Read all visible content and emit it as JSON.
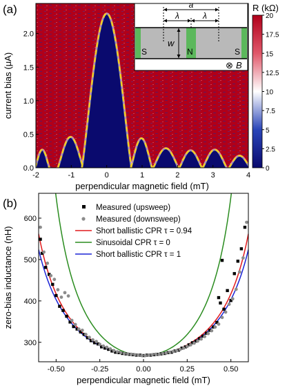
{
  "chart_data": [
    {
      "panel_label": "(a)",
      "type": "heatmap",
      "xlabel": "perpendicular magnetic field (mT)",
      "ylabel": "current bias (μA)",
      "xlim": [
        -2,
        4
      ],
      "ylim": [
        0,
        2.45
      ],
      "xticks": [
        "-2",
        "-1",
        "0",
        "1",
        "2",
        "3",
        "4"
      ],
      "yticks": [
        "0.0",
        "0.5",
        "1.0",
        "1.5",
        "2.0"
      ],
      "colorbar": {
        "label": "R (kΩ)",
        "range": [
          0,
          20
        ],
        "ticks": [
          "0",
          "2.5",
          "5",
          "7.5",
          "10",
          "12.5",
          "15",
          "17.5",
          "20"
        ],
        "low_color": "#0a0a6e",
        "mid_color": "#ffffff",
        "high_color": "#b0001a"
      },
      "critical_current_lobes": [
        {
          "center": -1.82,
          "half_width": 0.2,
          "peak": 0.27
        },
        {
          "center": -1.02,
          "half_width": 0.36,
          "peak": 0.46
        },
        {
          "center": 0.0,
          "half_width": 0.7,
          "peak": 2.3
        },
        {
          "center": 0.98,
          "half_width": 0.3,
          "peak": 0.44
        },
        {
          "center": 1.67,
          "half_width": 0.36,
          "peak": 0.29
        },
        {
          "center": 2.37,
          "half_width": 0.32,
          "peak": 0.26
        },
        {
          "center": 3.05,
          "half_width": 0.34,
          "peak": 0.27
        },
        {
          "center": 3.75,
          "half_width": 0.3,
          "peak": 0.18
        }
      ],
      "fit_curve_color": "#f2d21a",
      "inset": {
        "labels": {
          "a": "a",
          "lambda": "λ",
          "w": "w",
          "S_left": "S",
          "N": "N",
          "S_right": "S",
          "B": "B"
        },
        "field_symbol": "⊗",
        "colors": {
          "superconductor": "#5cb85c",
          "junction": "#b9b9b9"
        }
      }
    },
    {
      "panel_label": "(b)",
      "type": "scatter",
      "xlabel": "perpendicular magnetic field (mT)",
      "ylabel": "zero-bias inductance (nH)",
      "xlim": [
        -0.6,
        0.6
      ],
      "ylim": [
        253,
        660
      ],
      "xticks": [
        "-0.50",
        "-0.25",
        "0.00",
        "0.25",
        "0.50"
      ],
      "yticks": [
        "300",
        "400",
        "500",
        "600"
      ],
      "legend_position": "top-center",
      "series": [
        {
          "name": "Measured (upsweep)",
          "kind": "points",
          "marker": "square",
          "color": "#000000",
          "x": [
            -0.59,
            -0.58,
            -0.56,
            -0.54,
            -0.52,
            -0.5,
            -0.48,
            -0.46,
            -0.44,
            -0.42,
            -0.4,
            -0.38,
            -0.36,
            -0.34,
            -0.32,
            -0.3,
            -0.28,
            -0.26,
            -0.24,
            -0.22,
            -0.2,
            -0.18,
            -0.16,
            -0.14,
            -0.12,
            -0.1,
            -0.08,
            -0.06,
            -0.04,
            -0.02,
            0.0,
            0.02,
            0.04,
            0.06,
            0.08,
            0.1,
            0.12,
            0.14,
            0.16,
            0.18,
            0.2,
            0.22,
            0.24,
            0.26,
            0.28,
            0.3,
            0.32,
            0.34,
            0.36,
            0.38,
            0.4,
            0.42,
            0.43,
            0.44,
            0.45,
            0.46,
            0.48,
            0.5,
            0.52,
            0.54,
            0.56,
            0.58
          ],
          "y": [
            549,
            515,
            481,
            464,
            440,
            413,
            387,
            377,
            363,
            349,
            338,
            332,
            325,
            319,
            311,
            304,
            299,
            296,
            289,
            286,
            283,
            279,
            276,
            275,
            273,
            272,
            271,
            270,
            269,
            269,
            268,
            269,
            269,
            270,
            271,
            272,
            273,
            275,
            276,
            279,
            281,
            286,
            289,
            294,
            299,
            303,
            309,
            315,
            322,
            329,
            337,
            348,
            408,
            395,
            498,
            380,
            425,
            401,
            466,
            496,
            526,
            578
          ]
        },
        {
          "name": "Measured (downsweep)",
          "kind": "points",
          "marker": "circle",
          "color": "#8c8c8c",
          "x": [
            -0.59,
            -0.57,
            -0.55,
            -0.53,
            -0.51,
            -0.49,
            -0.47,
            -0.45,
            -0.43,
            -0.41,
            -0.39,
            -0.37,
            -0.35,
            -0.33,
            -0.31,
            -0.29,
            -0.27,
            -0.25,
            -0.23,
            -0.21,
            -0.19,
            -0.17,
            -0.15,
            -0.13,
            -0.11,
            -0.09,
            -0.07,
            -0.05,
            -0.03,
            -0.01,
            0.01,
            0.03,
            0.05,
            0.07,
            0.09,
            0.11,
            0.13,
            0.15,
            0.17,
            0.19,
            0.21,
            0.23,
            0.25,
            0.27,
            0.29,
            0.31,
            0.33,
            0.35,
            0.37,
            0.39,
            0.41,
            0.43,
            0.45,
            0.47,
            0.49,
            0.51,
            0.53,
            0.55,
            0.57,
            0.59
          ],
          "y": [
            578,
            518,
            491,
            461,
            452,
            427,
            409,
            420,
            412,
            353,
            343,
            332,
            329,
            319,
            312,
            306,
            302,
            295,
            291,
            288,
            284,
            280,
            277,
            275,
            273,
            272,
            271,
            270,
            269,
            268,
            268,
            269,
            270,
            271,
            271,
            273,
            274,
            276,
            278,
            280,
            283,
            286,
            290,
            294,
            298,
            303,
            308,
            314,
            321,
            328,
            337,
            344,
            360,
            373,
            392,
            405,
            428,
            470,
            504,
            590
          ]
        },
        {
          "name": "Short ballistic CPR τ = 0.94",
          "kind": "line",
          "color": "#e0191b",
          "model": "kso",
          "tau": 0.94,
          "L0": 268,
          "flux_period": 1.37
        },
        {
          "name": "Sinusoidal CPR τ = 0",
          "kind": "line",
          "color": "#2a8c1f",
          "model": "sinusoidal",
          "tau": 0,
          "L0": 268,
          "flux_period": 1.37
        },
        {
          "name": "Short ballistic CPR τ = 1",
          "kind": "line",
          "color": "#1a23d6",
          "model": "kso",
          "tau": 1,
          "L0": 268,
          "flux_period": 1.37
        }
      ]
    }
  ]
}
